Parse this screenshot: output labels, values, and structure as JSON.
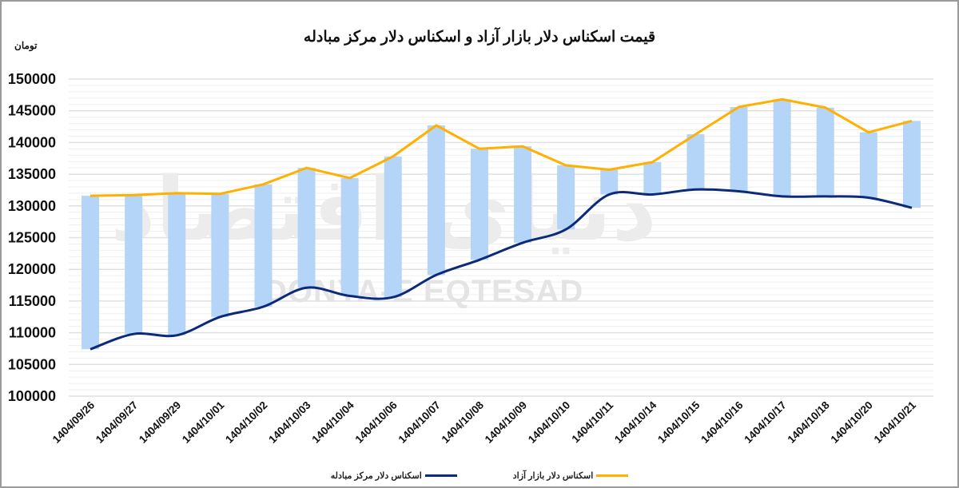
{
  "title": "قیمت اسکناس دلار بازار آزاد و اسکناس دلار مرکز مبادله",
  "unit_label": "تومان",
  "watermark": {
    "latin": "DONYA-E EQTESAD",
    "persian": "دنیای اقتصاد"
  },
  "colors": {
    "free_market_line": "#FFB000",
    "exchange_center_line": "#0B2A7A",
    "range_bar": "#B4D5F7",
    "gridline": "#e0e0e0",
    "minor_gridline": "#efefef",
    "frame": "#9a9a9a"
  },
  "legend": [
    {
      "label": "اسکناس دلار بازار آزاد",
      "color": "#FFB000"
    },
    {
      "label": "اسکناس دلار مرکز مبادله",
      "color": "#0B2A7A"
    }
  ],
  "chart_data": {
    "type": "line",
    "title": "قیمت اسکناس دلار بازار آزاد و اسکناس دلار مرکز مبادله",
    "xlabel": "",
    "ylabel": "تومان",
    "ylim": [
      100000,
      150000
    ],
    "yticks": [
      100000,
      105000,
      110000,
      115000,
      120000,
      125000,
      130000,
      135000,
      140000,
      145000,
      150000
    ],
    "grid": true,
    "minor_grid_step": 1000,
    "legend_position": "bottom",
    "categories": [
      "1404/09/26",
      "1404/09/27",
      "1404/09/29",
      "1404/10/01",
      "1404/10/02",
      "1404/10/03",
      "1404/10/04",
      "1404/10/06",
      "1404/10/07",
      "1404/10/08",
      "1404/10/09",
      "1404/10/10",
      "1404/10/11",
      "1404/10/14",
      "1404/10/15",
      "1404/10/16",
      "1404/10/17",
      "1404/10/18",
      "1404/10/20",
      "1404/10/21"
    ],
    "series": [
      {
        "name": "اسکناس دلار بازار آزاد",
        "color": "#FFB000",
        "style": "line",
        "values": [
          131600,
          131700,
          132000,
          131900,
          133400,
          136000,
          134400,
          137800,
          142700,
          139000,
          139400,
          136400,
          135700,
          136900,
          141300,
          145600,
          146800,
          145500,
          141600,
          143400
        ]
      },
      {
        "name": "اسکناس دلار مرکز مبادله",
        "color": "#0B2A7A",
        "style": "smooth-line",
        "values": [
          107400,
          109800,
          109600,
          112500,
          114100,
          117100,
          115800,
          115600,
          119100,
          121500,
          124200,
          126300,
          131800,
          131800,
          132600,
          132300,
          131500,
          131500,
          131300,
          129700
        ]
      },
      {
        "name": "spread",
        "color": "#B4D5F7",
        "style": "range-bar",
        "note": "floating bars spanning from exchange-center price to free-market price"
      }
    ]
  }
}
